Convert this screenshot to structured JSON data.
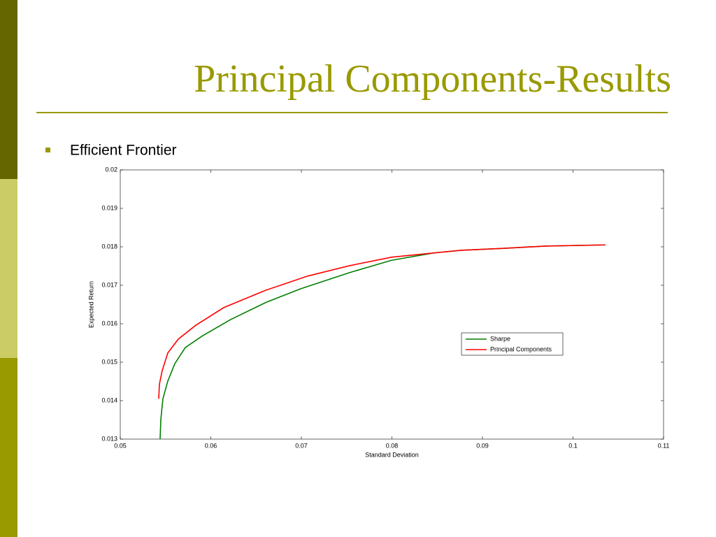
{
  "title": "Principal Components-Results",
  "bullet": "Efficient Frontier",
  "chart_data": {
    "type": "line",
    "xlabel": "Standard Deviation",
    "ylabel": "Expected Return",
    "xlim": [
      0.05,
      0.11
    ],
    "ylim": [
      0.013,
      0.02
    ],
    "xticks": [
      0.05,
      0.06,
      0.07,
      0.08,
      0.09,
      0.1,
      0.11
    ],
    "yticks": [
      0.013,
      0.014,
      0.015,
      0.016,
      0.017,
      0.018,
      0.019,
      0.02
    ],
    "grid": false,
    "legend": "right",
    "series": [
      {
        "name": "Sharpe",
        "color": "#007f00",
        "x": [
          0.0544,
          0.05448,
          0.05471,
          0.05525,
          0.05602,
          0.05718,
          0.05911,
          0.0622,
          0.06605,
          0.06992,
          0.07533,
          0.07996,
          0.08459,
          0.08768,
          0.09232,
          0.09695,
          0.10359
        ],
        "values": [
          0.013,
          0.01351,
          0.01405,
          0.01451,
          0.01496,
          0.01538,
          0.01569,
          0.01611,
          0.01655,
          0.01691,
          0.01733,
          0.01765,
          0.01784,
          0.01791,
          0.01796,
          0.01802,
          0.01805
        ]
      },
      {
        "name": "Principal Components",
        "color": "#ff0000",
        "x": [
          0.05425,
          0.05432,
          0.05463,
          0.05525,
          0.05641,
          0.05834,
          0.06143,
          0.06606,
          0.0707,
          0.07533,
          0.07996,
          0.08459,
          0.08768,
          0.09232,
          0.09695,
          0.10359
        ],
        "values": [
          0.01405,
          0.01442,
          0.01478,
          0.01524,
          0.0156,
          0.01596,
          0.01642,
          0.01687,
          0.01724,
          0.01751,
          0.01773,
          0.01784,
          0.01791,
          0.01796,
          0.01802,
          0.01805
        ]
      }
    ]
  }
}
